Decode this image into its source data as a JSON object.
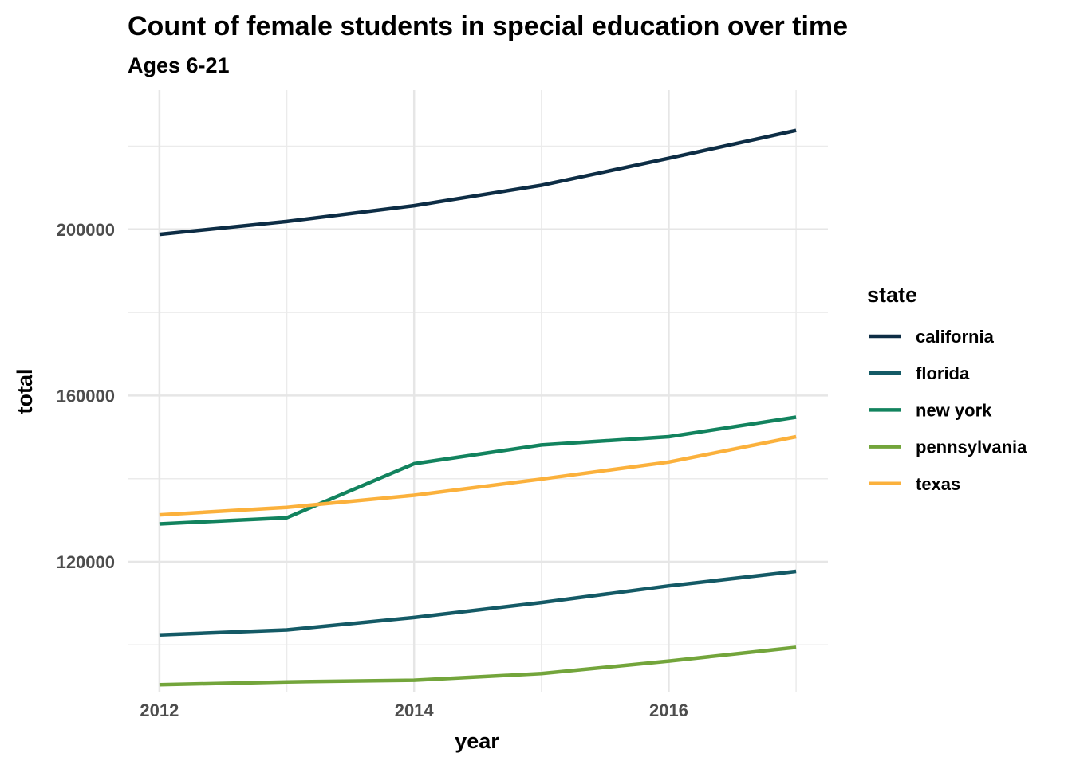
{
  "chart_data": {
    "type": "line",
    "title": "Count of female students in special education over time",
    "subtitle": "Ages 6-21",
    "xlabel": "year",
    "ylabel": "total",
    "x": [
      2012,
      2013,
      2014,
      2015,
      2016,
      2017
    ],
    "x_ticks": [
      2012,
      2014,
      2016
    ],
    "x_tick_labels": [
      "2012",
      "2014",
      "2016"
    ],
    "y_ticks": [
      120000,
      160000,
      200000
    ],
    "y_tick_labels": [
      "120000",
      "160000",
      "200000"
    ],
    "y_minor_ticks": [
      100000,
      140000,
      180000,
      220000
    ],
    "xlim": [
      2011.75,
      2017.25
    ],
    "ylim": [
      88740,
      233520
    ],
    "grid": true,
    "legend": {
      "title": "state",
      "position": "right"
    },
    "series": [
      {
        "name": "california",
        "color": "#0d2d45",
        "values": [
          198800,
          201900,
          205700,
          210600,
          217100,
          223800
        ]
      },
      {
        "name": "florida",
        "color": "#145a66",
        "values": [
          102400,
          103600,
          106600,
          110200,
          114200,
          117700
        ]
      },
      {
        "name": "new york",
        "color": "#12835e",
        "values": [
          129100,
          130600,
          143600,
          148100,
          150100,
          154800
        ]
      },
      {
        "name": "pennsylvania",
        "color": "#73a53b",
        "values": [
          90400,
          91100,
          91500,
          93100,
          96100,
          99400
        ]
      },
      {
        "name": "texas",
        "color": "#fbb13c",
        "values": [
          131300,
          133100,
          136000,
          139900,
          144000,
          150100
        ]
      }
    ]
  }
}
